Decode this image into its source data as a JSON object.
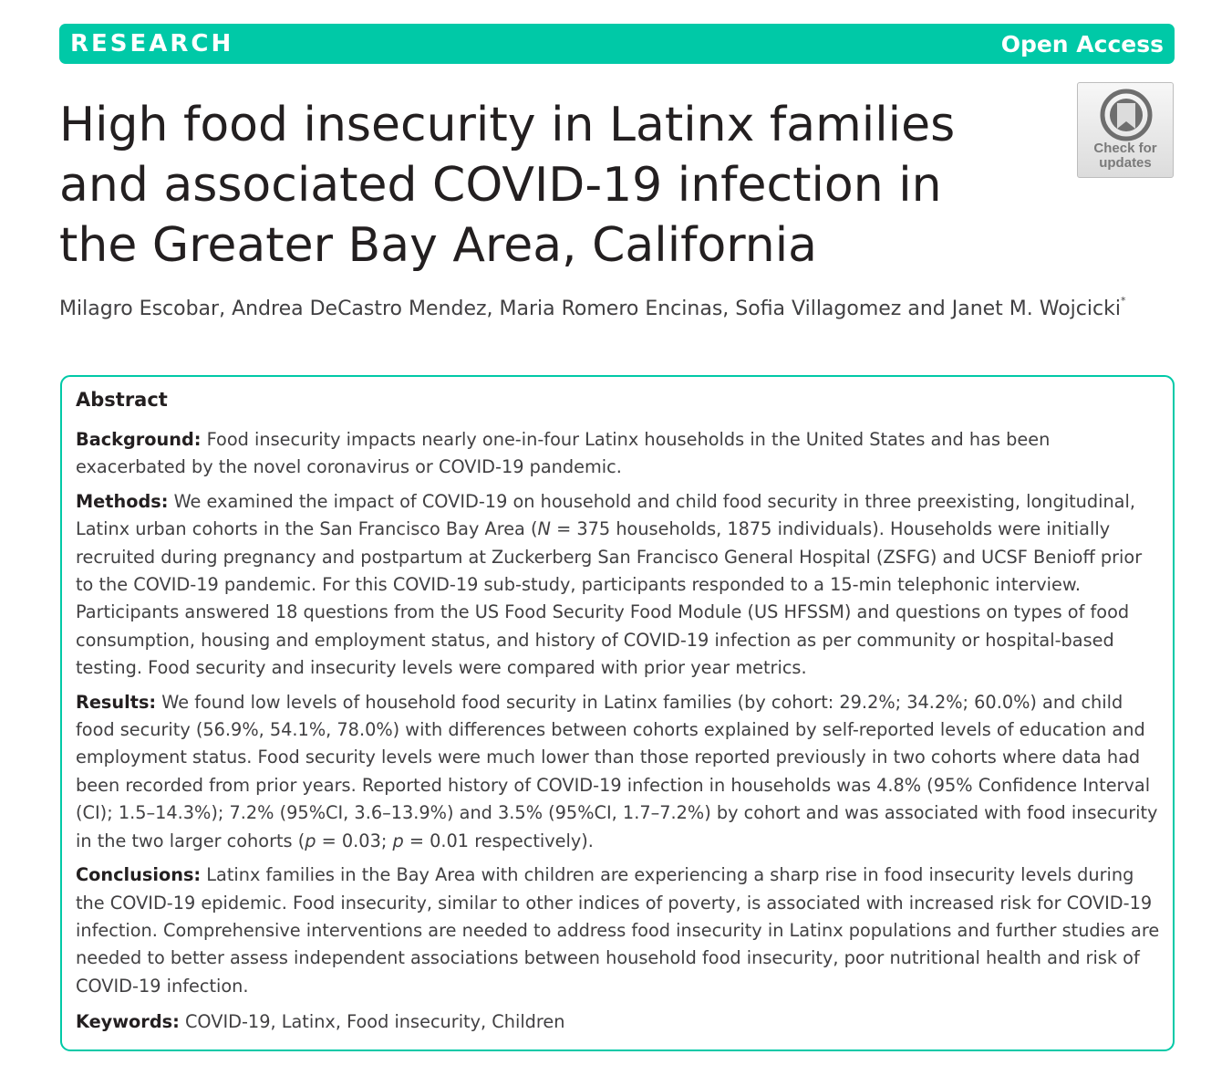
{
  "header": {
    "category": "RESEARCH",
    "access": "Open Access",
    "brand_color": "#00c9a7"
  },
  "title": "High food insecurity in Latinx families and associated COVID-19 infection in the Greater Bay Area, California",
  "check_for_updates": {
    "icon": "check-for-updates-icon",
    "line1": "Check for",
    "line2": "updates"
  },
  "authors": {
    "text": "Milagro Escobar, Andrea DeCastro Mendez, Maria Romero Encinas, Sofia Villagomez and Janet M. Wojcicki",
    "mark": "*"
  },
  "abstract": {
    "heading": "Abstract",
    "background": {
      "label": "Background:",
      "text": "Food insecurity impacts nearly one-in-four Latinx households in the United States and has been exacerbated by the novel coronavirus or COVID-19 pandemic."
    },
    "methods": {
      "label": "Methods:",
      "text_before": "We examined the impact of COVID-19 on household and child food security in three preexisting, longitudinal, Latinx urban cohorts in the San Francisco Bay Area (",
      "n_symbol": "N",
      "text_after": " = 375 households, 1875 individuals). Households were initially recruited during pregnancy and postpartum at Zuckerberg San Francisco General Hospital (ZSFG) and UCSF Benioff prior to the COVID-19 pandemic. For this COVID-19 sub-study, participants responded to a 15-min telephonic interview. Participants answered 18 questions from the US Food Security Food Module (US HFSSM) and questions on types of food consumption, housing and employment status, and history of COVID-19 infection as per community or hospital-based testing. Food security and insecurity levels were compared with prior year metrics."
    },
    "results": {
      "label": "Results:",
      "text_before": "We found low levels of household food security in Latinx families (by cohort: 29.2%; 34.2%; 60.0%) and child food security (56.9%, 54.1%, 78.0%) with differences between cohorts explained by self-reported levels of education and employment status. Food security levels were much lower than those reported previously in two cohorts where data had been recorded from prior years. Reported history of COVID-19 infection in households was 4.8% (95% Confidence Interval (CI); 1.5–14.3%); 7.2% (95%CI, 3.6–13.9%) and 3.5% (95%CI, 1.7–7.2%) by cohort and was associated with food insecurity in the two larger cohorts (",
      "p_symbol_1": "p",
      "text_middle": " = 0.03; ",
      "p_symbol_2": "p",
      "text_after": " = 0.01 respectively)."
    },
    "conclusions": {
      "label": "Conclusions:",
      "text": "Latinx families in the Bay Area with children are experiencing a sharp rise in food insecurity levels during the COVID-19 epidemic. Food insecurity, similar to other indices of poverty, is associated with increased risk for COVID-19 infection. Comprehensive interventions are needed to address food insecurity in Latinx populations and further studies are needed to better assess independent associations between household food insecurity, poor nutritional health and risk of COVID-19 infection."
    },
    "keywords": {
      "label": "Keywords:",
      "text": "COVID-19, Latinx, Food insecurity, Children"
    }
  }
}
